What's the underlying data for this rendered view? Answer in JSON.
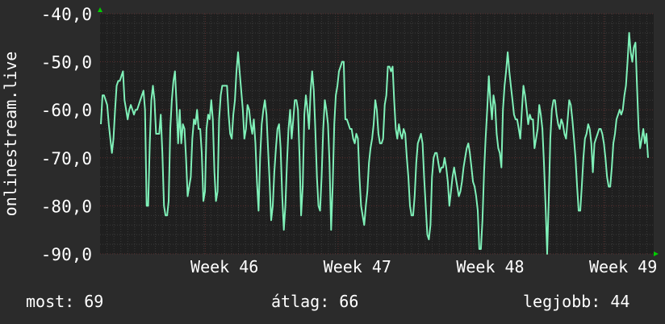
{
  "colors": {
    "background": "#2b2b2b",
    "plot_background": "#1f1f1f",
    "grid_minor": "#3b3b3b",
    "grid_major": "#5a2f2f",
    "series": "#7ff0b8",
    "axis_arrow": "#00cc00",
    "text": "#ffffff"
  },
  "stats": {
    "now": "most: 69",
    "avg": "átlag: 66",
    "best": "legjobb: 44"
  },
  "chart_data": {
    "type": "line",
    "ylabel": "onlinestream.live",
    "ylim": [
      -90,
      -40
    ],
    "yticks": [
      -40,
      -50,
      -60,
      -70,
      -80,
      -90
    ],
    "ytick_labels": [
      "-40,0",
      "-50,0",
      "-60,0",
      "-70,0",
      "-80,0",
      "-90,0"
    ],
    "xlim": [
      0,
      1
    ],
    "xticks": [
      0.19,
      0.43,
      0.67,
      0.91
    ],
    "xtick_labels": [
      "Week 46",
      "Week 47",
      "Week 48",
      "Week 49"
    ],
    "grid": true,
    "series": [
      {
        "values": [
          -63,
          -57,
          -57,
          -58,
          -59,
          -63,
          -66,
          -69,
          -66,
          -60,
          -55,
          -54,
          -54,
          -53,
          -52,
          -58,
          -60,
          -62,
          -60,
          -59,
          -60,
          -61,
          -60,
          -60,
          -59,
          -58,
          -57,
          -56,
          -60,
          -80,
          -80,
          -67,
          -58,
          -55,
          -58,
          -65,
          -65,
          -65,
          -61,
          -69,
          -80,
          -82,
          -82,
          -79,
          -64,
          -58,
          -54,
          -52,
          -59,
          -67,
          -60,
          -67,
          -63,
          -64,
          -70,
          -78,
          -76,
          -74,
          -66,
          -62,
          -63,
          -60,
          -64,
          -64,
          -69,
          -79,
          -77,
          -64,
          -61,
          -62,
          -58,
          -62,
          -73,
          -79,
          -77,
          -62,
          -57,
          -55,
          -55,
          -55,
          -55,
          -61,
          -65,
          -66,
          -61,
          -58,
          -52,
          -48,
          -52,
          -56,
          -60,
          -66,
          -64,
          -59,
          -60,
          -63,
          -65,
          -62,
          -67,
          -75,
          -81,
          -70,
          -63,
          -60,
          -58,
          -61,
          -68,
          -75,
          -83,
          -80,
          -73,
          -68,
          -64,
          -63,
          -68,
          -78,
          -85,
          -80,
          -71,
          -64,
          -60,
          -66,
          -62,
          -58,
          -58,
          -60,
          -70,
          -82,
          -76,
          -61,
          -57,
          -60,
          -64,
          -56,
          -52,
          -56,
          -64,
          -74,
          -80,
          -81,
          -74,
          -64,
          -58,
          -60,
          -63,
          -71,
          -85,
          -76,
          -63,
          -57,
          -55,
          -52,
          -51,
          -50,
          -50,
          -62,
          -62,
          -63,
          -64,
          -64,
          -66,
          -67,
          -65,
          -66,
          -74,
          -80,
          -82,
          -84,
          -80,
          -77,
          -71,
          -68,
          -66,
          -63,
          -58,
          -60,
          -65,
          -67,
          -67,
          -66,
          -59,
          -57,
          -51,
          -51,
          -52,
          -51,
          -58,
          -64,
          -66,
          -63,
          -65,
          -66,
          -64,
          -65,
          -70,
          -74,
          -80,
          -82,
          -82,
          -78,
          -71,
          -67,
          -66,
          -65,
          -67,
          -74,
          -80,
          -86,
          -87,
          -84,
          -74,
          -70,
          -69,
          -69,
          -71,
          -73,
          -72,
          -72,
          -70,
          -72,
          -75,
          -80,
          -77,
          -74,
          -72,
          -74,
          -76,
          -78,
          -77,
          -75,
          -72,
          -70,
          -68,
          -67,
          -69,
          -72,
          -75,
          -76,
          -78,
          -81,
          -89,
          -89,
          -83,
          -73,
          -66,
          -60,
          -53,
          -58,
          -62,
          -57,
          -59,
          -65,
          -68,
          -69,
          -72,
          -60,
          -55,
          -52,
          -48,
          -52,
          -55,
          -58,
          -61,
          -62,
          -62,
          -64,
          -66,
          -60,
          -55,
          -57,
          -60,
          -63,
          -61,
          -62,
          -62,
          -68,
          -66,
          -64,
          -59,
          -61,
          -64,
          -71,
          -80,
          -90,
          -79,
          -66,
          -60,
          -58,
          -58,
          -61,
          -63,
          -64,
          -62,
          -63,
          -65,
          -66,
          -62,
          -58,
          -59,
          -62,
          -66,
          -70,
          -76,
          -81,
          -81,
          -76,
          -70,
          -66,
          -65,
          -63,
          -64,
          -67,
          -73,
          -67,
          -66,
          -65,
          -64,
          -64,
          -65,
          -67,
          -70,
          -74,
          -76,
          -76,
          -72,
          -67,
          -65,
          -62,
          -61,
          -60,
          -61,
          -60,
          -57,
          -55,
          -50,
          -44,
          -48,
          -50,
          -47,
          -46,
          -55,
          -64,
          -68,
          -66,
          -64,
          -67,
          -65,
          -70
        ]
      }
    ]
  }
}
